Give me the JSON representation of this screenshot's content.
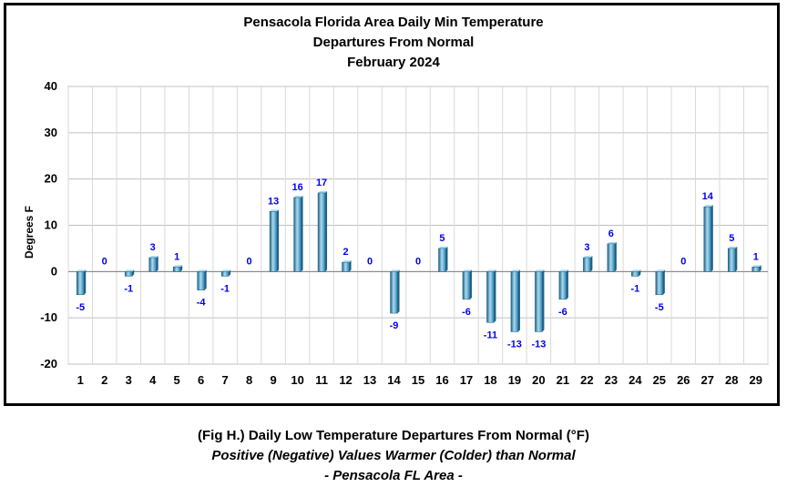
{
  "chart_data": {
    "type": "bar",
    "title": [
      "Pensacola Florida Area Daily Min Temperature",
      "Departures From Normal",
      "February 2024"
    ],
    "ylabel": "Degrees F",
    "xlabel": "",
    "ylim": [
      -20,
      40
    ],
    "yticks": [
      "40",
      "30",
      "20",
      "10",
      "0",
      "-10",
      "-20"
    ],
    "categories": [
      "1",
      "2",
      "3",
      "4",
      "5",
      "6",
      "7",
      "8",
      "9",
      "10",
      "11",
      "12",
      "13",
      "14",
      "15",
      "16",
      "17",
      "18",
      "19",
      "20",
      "21",
      "22",
      "23",
      "24",
      "25",
      "26",
      "27",
      "28",
      "29"
    ],
    "values": [
      -5,
      0,
      -1,
      3,
      1,
      -4,
      -1,
      0,
      13,
      16,
      17,
      2,
      0,
      -9,
      0,
      5,
      -6,
      -11,
      -13,
      -13,
      -6,
      3,
      6,
      -1,
      -5,
      0,
      14,
      5,
      1
    ],
    "data_labels": [
      "-5",
      "0",
      "-1",
      "3",
      "1",
      "-4",
      "-1",
      "0",
      "13",
      "16",
      "17",
      "2",
      "0",
      "-9",
      "0",
      "5",
      "-6",
      "-11",
      "-13",
      "-13",
      "-6",
      "3",
      "6",
      "-1",
      "-5",
      "0",
      "14",
      "5",
      "1"
    ],
    "grid": true,
    "legend": "none",
    "colors": {
      "bar": "#4a9cc4",
      "bar_dark": "#1f5f85",
      "bar_light": "#a9dcf2",
      "label": "#0000ee",
      "grid": "#c0c0c0",
      "frame": "#000000"
    }
  },
  "caption": {
    "line1": "(Fig H.) Daily Low Temperature Departures From Normal (°F)",
    "line2": "Positive (Negative) Values Warmer (Colder) than Normal",
    "line3": "- Pensacola FL Area -"
  }
}
